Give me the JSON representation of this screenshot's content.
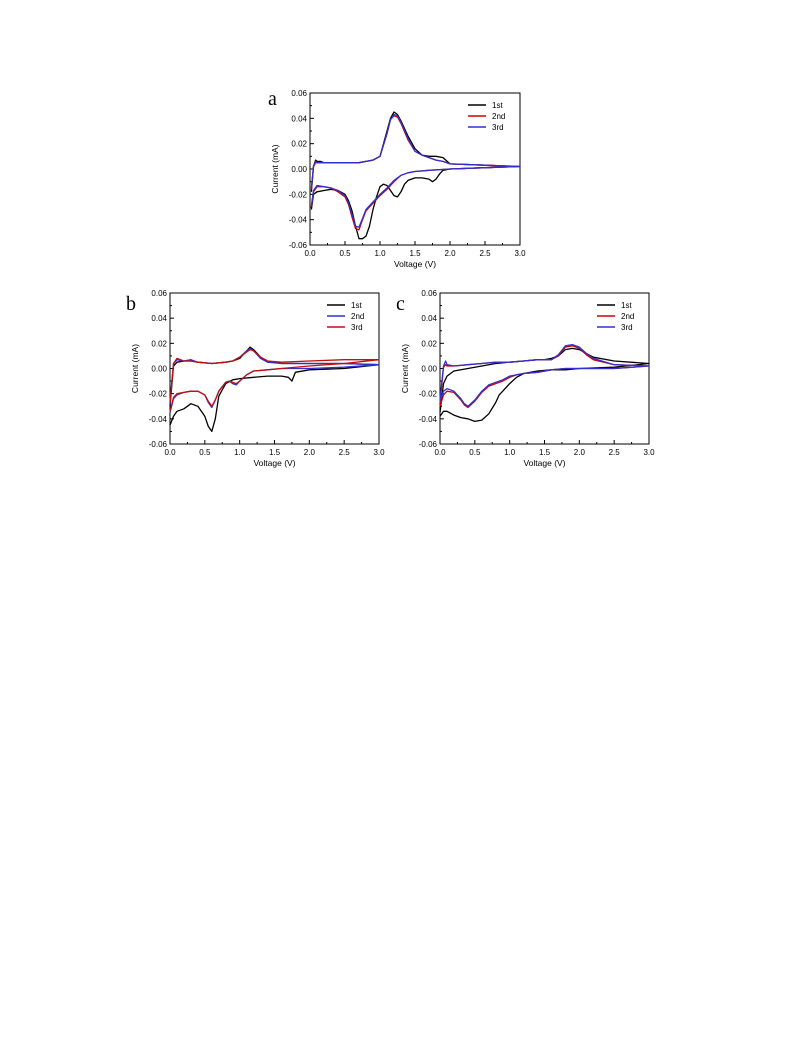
{
  "panels": [
    {
      "letter": "a",
      "type": "line",
      "xlabel": "Voltage (V)",
      "ylabel": "Current (mA)",
      "xlim": [
        0,
        3.0
      ],
      "ylim": [
        -0.06,
        0.06
      ],
      "xticks": [
        "0.0",
        "0.5",
        "1.0",
        "1.5",
        "2.0",
        "2.5",
        "3.0"
      ],
      "yticks": [
        "0.06",
        "0.04",
        "0.02",
        "0.00",
        "-0.02",
        "-0.04",
        "-0.06"
      ],
      "legend_position": "top-right",
      "series": [
        {
          "name": "1st",
          "color": "#000000",
          "x": [
            0.02,
            0.05,
            0.1,
            0.2,
            0.3,
            0.4,
            0.5,
            0.55,
            0.6,
            0.65,
            0.7,
            0.75,
            0.8,
            0.85,
            0.9,
            0.95,
            1.0,
            1.05,
            1.1,
            1.15,
            1.2,
            1.25,
            1.3,
            1.35,
            1.4,
            1.5,
            1.6,
            1.7,
            1.75,
            1.8,
            1.85,
            1.9,
            2.0,
            2.5,
            3.0,
            2.5,
            2.0,
            1.9,
            1.8,
            1.7,
            1.6,
            1.5,
            1.4,
            1.3,
            1.25,
            1.2,
            1.15,
            1.1,
            1.0,
            0.9,
            0.8,
            0.7,
            0.6,
            0.5,
            0.4,
            0.3,
            0.2,
            0.15,
            0.1,
            0.08,
            0.05,
            0.02
          ],
          "y": [
            -0.032,
            -0.02,
            -0.018,
            -0.017,
            -0.016,
            -0.017,
            -0.02,
            -0.025,
            -0.033,
            -0.045,
            -0.055,
            -0.055,
            -0.053,
            -0.045,
            -0.032,
            -0.022,
            -0.014,
            -0.012,
            -0.013,
            -0.017,
            -0.021,
            -0.022,
            -0.018,
            -0.012,
            -0.009,
            -0.007,
            -0.007,
            -0.008,
            -0.01,
            -0.008,
            -0.004,
            -0.001,
            0.0,
            0.001,
            0.002,
            0.003,
            0.004,
            0.009,
            0.01,
            0.01,
            0.011,
            0.016,
            0.026,
            0.038,
            0.043,
            0.045,
            0.04,
            0.03,
            0.01,
            0.007,
            0.006,
            0.005,
            0.005,
            0.005,
            0.005,
            0.005,
            0.005,
            0.006,
            0.006,
            0.007,
            0.002,
            -0.018
          ]
        },
        {
          "name": "2nd",
          "color": "#d00000",
          "x": [
            0.02,
            0.05,
            0.1,
            0.2,
            0.3,
            0.4,
            0.5,
            0.55,
            0.6,
            0.65,
            0.7,
            0.75,
            0.8,
            0.9,
            1.0,
            1.1,
            1.2,
            1.3,
            1.4,
            1.5,
            1.7,
            2.0,
            2.5,
            3.0,
            2.5,
            2.0,
            1.9,
            1.8,
            1.7,
            1.6,
            1.5,
            1.4,
            1.3,
            1.25,
            1.2,
            1.15,
            1.1,
            1.0,
            0.9,
            0.8,
            0.7,
            0.6,
            0.5,
            0.4,
            0.3,
            0.2,
            0.15,
            0.1,
            0.08,
            0.05,
            0.02
          ],
          "y": [
            -0.03,
            -0.018,
            -0.014,
            -0.014,
            -0.015,
            -0.018,
            -0.022,
            -0.028,
            -0.038,
            -0.047,
            -0.048,
            -0.04,
            -0.033,
            -0.027,
            -0.021,
            -0.016,
            -0.01,
            -0.005,
            -0.003,
            -0.002,
            -0.001,
            0.0,
            0.001,
            0.002,
            0.003,
            0.004,
            0.006,
            0.007,
            0.009,
            0.011,
            0.014,
            0.023,
            0.036,
            0.041,
            0.042,
            0.039,
            0.028,
            0.01,
            0.007,
            0.006,
            0.005,
            0.005,
            0.005,
            0.005,
            0.005,
            0.005,
            0.005,
            0.005,
            0.006,
            0.002,
            -0.016
          ]
        },
        {
          "name": "3rd",
          "color": "#3030d0",
          "x": [
            0.02,
            0.05,
            0.1,
            0.2,
            0.3,
            0.4,
            0.5,
            0.55,
            0.6,
            0.65,
            0.7,
            0.75,
            0.8,
            0.9,
            1.0,
            1.1,
            1.2,
            1.3,
            1.4,
            1.5,
            1.7,
            2.0,
            2.5,
            3.0,
            2.5,
            2.0,
            1.9,
            1.8,
            1.7,
            1.6,
            1.5,
            1.4,
            1.3,
            1.25,
            1.2,
            1.15,
            1.1,
            1.0,
            0.9,
            0.8,
            0.7,
            0.6,
            0.5,
            0.4,
            0.3,
            0.2,
            0.15,
            0.1,
            0.08,
            0.05,
            0.02
          ],
          "y": [
            -0.029,
            -0.017,
            -0.013,
            -0.014,
            -0.015,
            -0.017,
            -0.021,
            -0.027,
            -0.036,
            -0.045,
            -0.046,
            -0.039,
            -0.032,
            -0.026,
            -0.02,
            -0.015,
            -0.009,
            -0.005,
            -0.003,
            -0.002,
            -0.001,
            0.0,
            0.001,
            0.002,
            0.003,
            0.004,
            0.006,
            0.007,
            0.009,
            0.011,
            0.014,
            0.024,
            0.037,
            0.042,
            0.043,
            0.039,
            0.028,
            0.01,
            0.007,
            0.006,
            0.005,
            0.005,
            0.005,
            0.005,
            0.005,
            0.005,
            0.005,
            0.005,
            0.005,
            0.002,
            -0.015
          ]
        }
      ]
    },
    {
      "letter": "b",
      "type": "line",
      "xlabel": "Voltage (V)",
      "ylabel": "Current (mA)",
      "xlim": [
        0,
        3.0
      ],
      "ylim": [
        -0.06,
        0.06
      ],
      "xticks": [
        "0.0",
        "0.5",
        "1.0",
        "1.5",
        "2.0",
        "2.5",
        "3.0"
      ],
      "yticks": [
        "0.06",
        "0.04",
        "0.02",
        "0.00",
        "-0.02",
        "-0.04",
        "-0.06"
      ],
      "legend_position": "top-right",
      "series": [
        {
          "name": "1st",
          "color": "#000000",
          "x": [
            0.0,
            0.05,
            0.1,
            0.2,
            0.3,
            0.4,
            0.5,
            0.55,
            0.6,
            0.65,
            0.7,
            0.8,
            0.9,
            1.0,
            1.2,
            1.4,
            1.6,
            1.7,
            1.75,
            1.8,
            2.0,
            2.5,
            3.0,
            2.5,
            2.0,
            1.6,
            1.4,
            1.3,
            1.2,
            1.15,
            1.1,
            1.0,
            0.9,
            0.8,
            0.6,
            0.4,
            0.3,
            0.2,
            0.1,
            0.05,
            0.0
          ],
          "y": [
            -0.045,
            -0.038,
            -0.034,
            -0.032,
            -0.028,
            -0.03,
            -0.038,
            -0.046,
            -0.05,
            -0.04,
            -0.022,
            -0.012,
            -0.009,
            -0.008,
            -0.007,
            -0.006,
            -0.006,
            -0.007,
            -0.01,
            -0.003,
            -0.001,
            0.0,
            0.003,
            0.004,
            0.004,
            0.004,
            0.006,
            0.009,
            0.015,
            0.017,
            0.014,
            0.008,
            0.006,
            0.005,
            0.004,
            0.005,
            0.006,
            0.006,
            0.005,
            0.002,
            -0.03
          ]
        },
        {
          "name": "2nd",
          "color": "#3030d0",
          "x": [
            0.0,
            0.05,
            0.1,
            0.2,
            0.3,
            0.4,
            0.5,
            0.55,
            0.6,
            0.65,
            0.7,
            0.8,
            0.85,
            0.9,
            0.95,
            1.0,
            1.1,
            1.2,
            1.4,
            1.6,
            2.0,
            2.5,
            3.0,
            2.5,
            2.0,
            1.6,
            1.4,
            1.3,
            1.2,
            1.15,
            1.1,
            1.0,
            0.9,
            0.8,
            0.6,
            0.4,
            0.3,
            0.2,
            0.1,
            0.05,
            0.0
          ],
          "y": [
            -0.035,
            -0.024,
            -0.021,
            -0.019,
            -0.018,
            -0.018,
            -0.021,
            -0.027,
            -0.031,
            -0.025,
            -0.018,
            -0.011,
            -0.01,
            -0.012,
            -0.013,
            -0.01,
            -0.005,
            -0.002,
            -0.001,
            0.0,
            0.0,
            0.001,
            0.003,
            0.004,
            0.004,
            0.004,
            0.005,
            0.008,
            0.014,
            0.016,
            0.014,
            0.009,
            0.006,
            0.005,
            0.004,
            0.005,
            0.007,
            0.006,
            0.007,
            0.004,
            -0.028
          ]
        },
        {
          "name": "3rd",
          "color": "#c01010",
          "x": [
            0.0,
            0.05,
            0.1,
            0.2,
            0.3,
            0.4,
            0.5,
            0.55,
            0.6,
            0.65,
            0.7,
            0.8,
            0.85,
            0.9,
            0.95,
            1.0,
            1.1,
            1.2,
            1.4,
            1.6,
            2.0,
            2.5,
            3.0,
            2.5,
            2.0,
            1.6,
            1.4,
            1.3,
            1.2,
            1.15,
            1.1,
            1.0,
            0.9,
            0.8,
            0.6,
            0.4,
            0.3,
            0.2,
            0.1,
            0.05,
            0.0
          ],
          "y": [
            -0.034,
            -0.023,
            -0.02,
            -0.019,
            -0.018,
            -0.018,
            -0.021,
            -0.026,
            -0.03,
            -0.025,
            -0.018,
            -0.011,
            -0.01,
            -0.011,
            -0.012,
            -0.01,
            -0.005,
            -0.002,
            -0.001,
            0.0,
            0.002,
            0.004,
            0.007,
            0.007,
            0.006,
            0.005,
            0.006,
            0.009,
            0.014,
            0.015,
            0.013,
            0.009,
            0.006,
            0.005,
            0.004,
            0.005,
            0.006,
            0.006,
            0.008,
            0.004,
            -0.027
          ]
        }
      ]
    },
    {
      "letter": "c",
      "type": "line",
      "xlabel": "Voltage (V)",
      "ylabel": "Current (mA)",
      "xlim": [
        0,
        3.0
      ],
      "ylim": [
        -0.06,
        0.06
      ],
      "xticks": [
        "0.0",
        "0.5",
        "1.0",
        "1.5",
        "2.0",
        "2.5",
        "3.0"
      ],
      "yticks": [
        "0.06",
        "0.04",
        "0.02",
        "0.00",
        "-0.02",
        "-0.04",
        "-0.06"
      ],
      "legend_position": "top-right",
      "series": [
        {
          "name": "1st",
          "color": "#000000",
          "x": [
            0.0,
            0.05,
            0.1,
            0.2,
            0.3,
            0.4,
            0.5,
            0.6,
            0.7,
            0.8,
            0.85,
            0.9,
            1.0,
            1.1,
            1.2,
            1.4,
            1.6,
            1.8,
            2.0,
            2.5,
            3.0,
            2.5,
            2.2,
            2.1,
            2.0,
            1.9,
            1.8,
            1.7,
            1.6,
            1.5,
            1.4,
            1.2,
            1.0,
            0.8,
            0.6,
            0.4,
            0.2,
            0.1,
            0.05,
            0.0
          ],
          "y": [
            -0.038,
            -0.034,
            -0.034,
            -0.037,
            -0.039,
            -0.04,
            -0.042,
            -0.041,
            -0.036,
            -0.027,
            -0.021,
            -0.018,
            -0.012,
            -0.007,
            -0.004,
            -0.002,
            -0.001,
            -0.001,
            0.0,
            0.001,
            0.004,
            0.006,
            0.009,
            0.012,
            0.015,
            0.016,
            0.015,
            0.01,
            0.008,
            0.007,
            0.007,
            0.006,
            0.005,
            0.004,
            0.002,
            0.0,
            -0.002,
            -0.006,
            -0.012,
            -0.035
          ]
        },
        {
          "name": "2nd",
          "color": "#d00000",
          "x": [
            0.0,
            0.05,
            0.1,
            0.2,
            0.3,
            0.35,
            0.4,
            0.5,
            0.6,
            0.7,
            0.8,
            0.9,
            1.0,
            1.1,
            1.2,
            1.4,
            1.6,
            1.8,
            2.0,
            2.5,
            3.0,
            2.5,
            2.2,
            2.1,
            2.0,
            1.9,
            1.8,
            1.7,
            1.6,
            1.5,
            1.4,
            1.2,
            1.0,
            0.8,
            0.6,
            0.4,
            0.2,
            0.1,
            0.08,
            0.05,
            0.0
          ],
          "y": [
            -0.03,
            -0.021,
            -0.018,
            -0.019,
            -0.025,
            -0.029,
            -0.031,
            -0.026,
            -0.019,
            -0.014,
            -0.012,
            -0.01,
            -0.007,
            -0.005,
            -0.004,
            -0.003,
            -0.001,
            0.0,
            0.0,
            0.0,
            0.002,
            0.003,
            0.007,
            0.011,
            0.016,
            0.018,
            0.017,
            0.01,
            0.007,
            0.007,
            0.007,
            0.006,
            0.005,
            0.005,
            0.004,
            0.003,
            0.002,
            0.002,
            0.003,
            0.001,
            -0.028
          ]
        },
        {
          "name": "3rd",
          "color": "#3030d0",
          "x": [
            0.0,
            0.05,
            0.1,
            0.2,
            0.3,
            0.35,
            0.4,
            0.5,
            0.6,
            0.7,
            0.8,
            0.9,
            1.0,
            1.1,
            1.2,
            1.4,
            1.6,
            1.8,
            2.0,
            2.5,
            3.0,
            2.5,
            2.2,
            2.1,
            2.0,
            1.9,
            1.8,
            1.7,
            1.6,
            1.5,
            1.4,
            1.2,
            1.0,
            0.8,
            0.6,
            0.4,
            0.2,
            0.1,
            0.08,
            0.05,
            0.0
          ],
          "y": [
            -0.026,
            -0.018,
            -0.016,
            -0.018,
            -0.024,
            -0.028,
            -0.03,
            -0.025,
            -0.018,
            -0.013,
            -0.011,
            -0.009,
            -0.006,
            -0.005,
            -0.004,
            -0.003,
            -0.001,
            0.0,
            0.0,
            0.0,
            0.002,
            0.003,
            0.008,
            0.012,
            0.017,
            0.019,
            0.018,
            0.011,
            0.007,
            0.007,
            0.007,
            0.006,
            0.005,
            0.005,
            0.004,
            0.003,
            0.002,
            0.003,
            0.006,
            0.002,
            -0.025
          ]
        }
      ]
    }
  ]
}
